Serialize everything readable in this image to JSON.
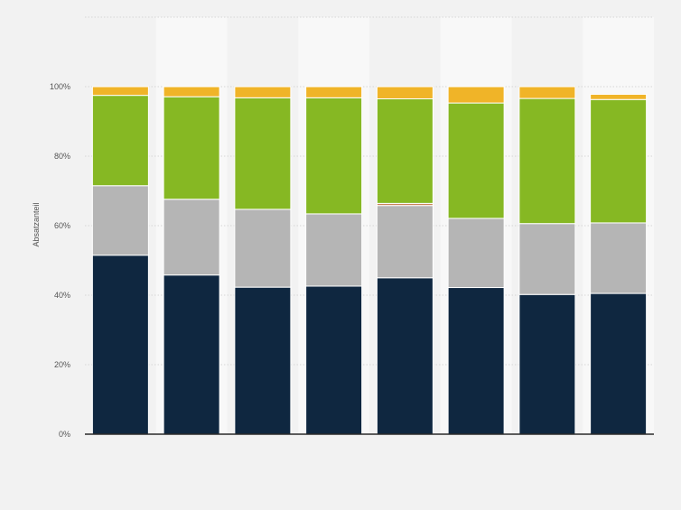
{
  "chart_data": {
    "type": "bar",
    "stacked": true,
    "categories": [
      "",
      "",
      "",
      "",
      "",
      "",
      "",
      ""
    ],
    "ylabel": "Absatzanteil",
    "ylim": [
      0,
      120
    ],
    "yticks": [
      {
        "value": 0,
        "label": "0%"
      },
      {
        "value": 20,
        "label": "20%"
      },
      {
        "value": 40,
        "label": "40%"
      },
      {
        "value": 60,
        "label": "60%"
      },
      {
        "value": 80,
        "label": "80%"
      },
      {
        "value": 100,
        "label": "100%"
      }
    ],
    "grid": true,
    "legend": "none",
    "series": [
      {
        "color": "#0f2740",
        "values": [
          51.5,
          45.8,
          42.3,
          42.6,
          45.0,
          42.2,
          40.2,
          40.5
        ]
      },
      {
        "color": "#b5b5b5",
        "values": [
          20.0,
          21.8,
          22.4,
          20.8,
          20.8,
          19.9,
          20.4,
          20.3
        ]
      },
      {
        "color": "#c8845c",
        "values": [
          0.0,
          0.0,
          0.0,
          0.0,
          0.6,
          0.0,
          0.0,
          0.0
        ]
      },
      {
        "color": "#86b823",
        "values": [
          26.0,
          29.5,
          32.1,
          33.4,
          30.1,
          33.2,
          36.0,
          35.5
        ]
      },
      {
        "color": "#f0b428",
        "values": [
          2.5,
          2.9,
          3.2,
          3.2,
          3.5,
          4.7,
          3.4,
          1.5
        ]
      }
    ]
  }
}
